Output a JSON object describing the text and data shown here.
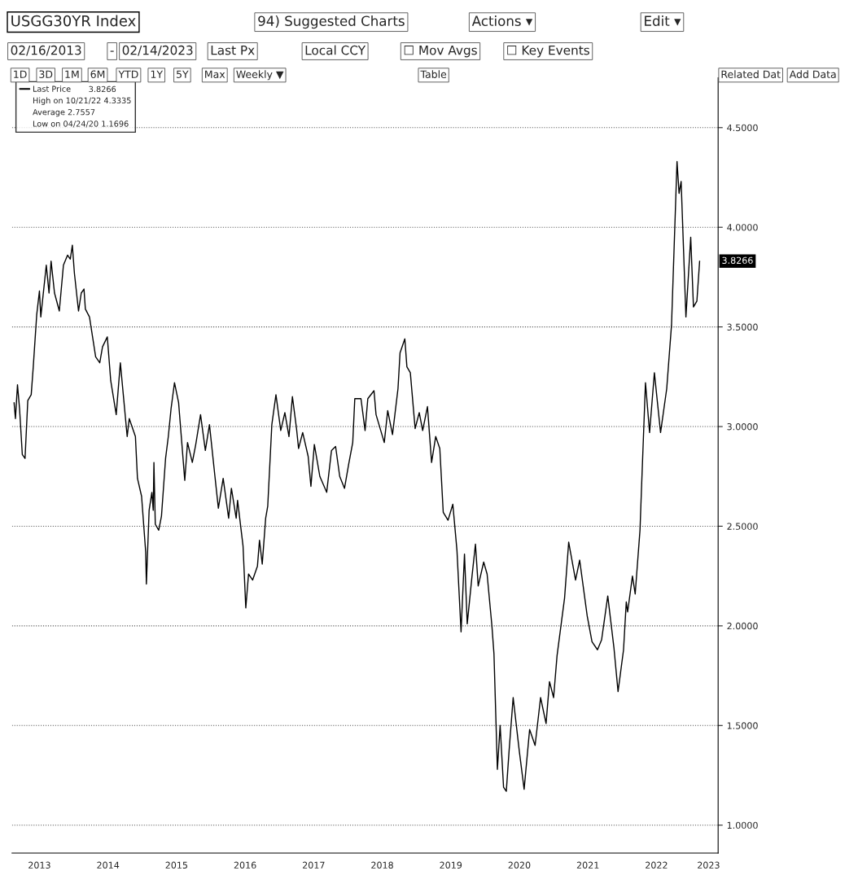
{
  "chart_data": {
    "type": "line",
    "title": "USGG30YR Index",
    "annotations": [
      "3.8266",
      "High on 10/21/22 4.3335",
      "Average 2.7557",
      "Low on 04/24/20 1.1696",
      {
        "text": "3.8266",
        "y": 3.83
      },
      "94) Suggested Charts",
      "Actions ▾",
      "Edit ▾",
      "02/16/2013",
      "-",
      "02/14/2023",
      "Last Px",
      "Local CCY",
      "☐ Mov Avgs",
      "☐ Key Events",
      "1D",
      "3D",
      "1M",
      "6M",
      "YTD",
      "1Y",
      "5Y",
      "Max",
      "Weekly ▼",
      "Table",
      "Related Dat",
      "Add Data"
    ],
    "series": [
      {
        "name": "Last Price",
        "color": "#000000",
        "x": [
          2013.13,
          2013.15,
          2013.18,
          2013.21,
          2013.25,
          2013.29,
          2013.33,
          2013.38,
          2013.41,
          2013.46,
          2013.5,
          2013.52,
          2013.6,
          2013.64,
          2013.67,
          2013.72,
          2013.79,
          2013.85,
          2013.91,
          2013.95,
          2013.98,
          2014.01,
          2014.07,
          2014.11,
          2014.15,
          2014.17,
          2014.23,
          2014.32,
          2014.38,
          2014.42,
          2014.49,
          2014.54,
          2014.62,
          2014.68,
          2014.78,
          2014.81,
          2014.9,
          2014.93,
          2014.99,
          2015.05,
          2015.06,
          2015.1,
          2015.14,
          2015.16,
          2015.17,
          2015.19,
          2015.24,
          2015.28,
          2015.34,
          2015.38,
          2015.42,
          2015.47,
          2015.53,
          2015.62,
          2015.66,
          2015.73,
          2015.78,
          2015.85,
          2015.92,
          2015.98,
          2016.06,
          2016.11,
          2016.18,
          2016.26,
          2016.3,
          2016.37,
          2016.39,
          2016.47,
          2016.51,
          2016.55,
          2016.61,
          2016.68,
          2016.71,
          2016.75,
          2016.8,
          2016.83,
          2016.89,
          2016.95,
          2017.02,
          2017.08,
          2017.14,
          2017.19,
          2017.25,
          2017.28,
          2017.34,
          2017.42,
          2017.46,
          2017.51,
          2017.59,
          2017.69,
          2017.76,
          2017.82,
          2017.88,
          2017.95,
          2018.01,
          2018.07,
          2018.1,
          2018.19,
          2018.25,
          2018.29,
          2018.38,
          2018.41,
          2018.53,
          2018.58,
          2018.65,
          2018.73,
          2018.76,
          2018.83,
          2018.86,
          2018.91,
          2018.98,
          2019.04,
          2019.09,
          2019.16,
          2019.22,
          2019.28,
          2019.34,
          2019.39,
          2019.46,
          2019.53,
          2019.59,
          2019.65,
          2019.7,
          2019.74,
          2019.81,
          2019.86,
          2019.9,
          2019.98,
          2020.03,
          2020.1,
          2020.13,
          2020.18,
          2020.22,
          2020.27,
          2020.31,
          2020.35,
          2020.41,
          2020.5,
          2020.57,
          2020.65,
          2020.73,
          2020.81,
          2020.89,
          2020.94,
          2021.0,
          2021.05,
          2021.16,
          2021.22,
          2021.32,
          2021.38,
          2021.49,
          2021.56,
          2021.64,
          2021.7,
          2021.79,
          2021.88,
          2021.94,
          2022.02,
          2022.06,
          2022.08,
          2022.15,
          2022.19,
          2022.26,
          2022.28,
          2022.34,
          2022.4,
          2022.47,
          2022.56,
          2022.65,
          2022.72,
          2022.8,
          2022.83,
          2022.86,
          2022.93,
          2023.0,
          2023.04,
          2023.09,
          2023.13
        ],
        "values": [
          3.12,
          3.04,
          3.21,
          3.09,
          2.86,
          2.84,
          3.13,
          3.16,
          3.3,
          3.56,
          3.68,
          3.55,
          3.81,
          3.67,
          3.83,
          3.67,
          3.58,
          3.81,
          3.86,
          3.84,
          3.91,
          3.77,
          3.58,
          3.67,
          3.69,
          3.59,
          3.55,
          3.35,
          3.32,
          3.4,
          3.45,
          3.23,
          3.06,
          3.32,
          2.95,
          3.04,
          2.95,
          2.74,
          2.65,
          2.37,
          2.21,
          2.58,
          2.67,
          2.58,
          2.82,
          2.51,
          2.48,
          2.55,
          2.84,
          2.95,
          3.09,
          3.22,
          3.12,
          2.73,
          2.92,
          2.82,
          2.91,
          3.06,
          2.88,
          3.01,
          2.75,
          2.59,
          2.74,
          2.54,
          2.69,
          2.54,
          2.63,
          2.4,
          2.09,
          2.26,
          2.23,
          2.3,
          2.43,
          2.31,
          2.54,
          2.6,
          3.01,
          3.16,
          2.98,
          3.07,
          2.95,
          3.15,
          2.99,
          2.89,
          2.97,
          2.85,
          2.7,
          2.91,
          2.75,
          2.67,
          2.88,
          2.9,
          2.75,
          2.69,
          2.81,
          2.92,
          3.14,
          3.14,
          2.98,
          3.14,
          3.18,
          3.06,
          2.92,
          3.08,
          2.96,
          3.19,
          3.37,
          3.44,
          3.3,
          3.27,
          2.99,
          3.07,
          2.98,
          3.1,
          2.82,
          2.95,
          2.89,
          2.57,
          2.53,
          2.61,
          2.38,
          1.97,
          2.36,
          2.01,
          2.25,
          2.41,
          2.2,
          2.32,
          2.26,
          2.0,
          1.86,
          1.28,
          1.5,
          1.19,
          1.17,
          1.37,
          1.64,
          1.37,
          1.18,
          1.48,
          1.4,
          1.64,
          1.51,
          1.72,
          1.64,
          1.85,
          2.14,
          2.42,
          2.23,
          2.33,
          2.05,
          1.92,
          1.88,
          1.93,
          2.15,
          1.89,
          1.67,
          1.88,
          2.12,
          2.07,
          2.25,
          2.16,
          2.48,
          2.67,
          3.22,
          2.97,
          3.27,
          2.97,
          3.19,
          3.51,
          4.33,
          4.17,
          4.23,
          3.55,
          3.95,
          3.6,
          3.63,
          3.83
        ]
      }
    ],
    "xlim": [
      2013.1,
      2023.4
    ],
    "xticks": [
      {
        "value": 2013.5,
        "label": "2013"
      },
      {
        "value": 2014.5,
        "label": "2014"
      },
      {
        "value": 2015.5,
        "label": "2015"
      },
      {
        "value": 2016.5,
        "label": "2016"
      },
      {
        "value": 2017.5,
        "label": "2017"
      },
      {
        "value": 2018.5,
        "label": "2018"
      },
      {
        "value": 2019.5,
        "label": "2019"
      },
      {
        "value": 2020.5,
        "label": "2020"
      },
      {
        "value": 2021.5,
        "label": "2021"
      },
      {
        "value": 2022.5,
        "label": "2022"
      },
      {
        "value": 2023.26,
        "label": "2023"
      }
    ],
    "ylim": [
      0.86,
      4.75
    ],
    "yticks": [
      {
        "value": 1.0,
        "label": "1.0000"
      },
      {
        "value": 1.5,
        "label": "1.5000"
      },
      {
        "value": 2.0,
        "label": "2.0000"
      },
      {
        "value": 2.5,
        "label": "2.5000"
      },
      {
        "value": 3.0,
        "label": "3.0000"
      },
      {
        "value": 3.5,
        "label": "3.5000"
      },
      {
        "value": 4.0,
        "label": "4.0000"
      },
      {
        "value": 4.5,
        "label": "4.5000"
      }
    ],
    "grid": "y",
    "legend": "top left",
    "line_style": "solid",
    "marker": "none"
  }
}
